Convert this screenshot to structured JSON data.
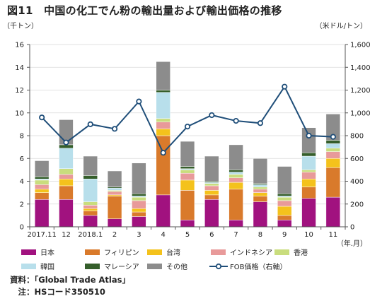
{
  "figure": {
    "title": "図11　中国の化工でん粉の輸出量および輸出価格の推移"
  },
  "notes": {
    "source": "資料：「Global Trade Atlas」",
    "note": "　注：HSコード350510"
  },
  "chart_data": {
    "type": "bar",
    "stacked": true,
    "categories": [
      "2017.11",
      "12",
      "2018.1",
      "2",
      "3",
      "4",
      "5",
      "6",
      "7",
      "8",
      "9",
      "10",
      "11"
    ],
    "left_axis": {
      "unit_label": "（千トン）",
      "ylim": [
        0,
        16
      ],
      "ticks": [
        0,
        2,
        4,
        6,
        8,
        10,
        12,
        14,
        16
      ]
    },
    "right_axis": {
      "unit_label": "（米ドル/トン）",
      "ylim": [
        0,
        1600
      ],
      "ticks": [
        "0",
        "200",
        "400",
        "600",
        "800",
        "1,000",
        "1,200",
        "1,400",
        "1,600"
      ]
    },
    "x_unit_label": "（年.月）",
    "grid": true,
    "legend_position": "bottom",
    "series": [
      {
        "name": "日本",
        "color": "#a1127f",
        "values": [
          2.4,
          2.4,
          1.0,
          0.7,
          0.9,
          2.8,
          0.6,
          2.4,
          0.6,
          2.2,
          0.6,
          2.5,
          2.6
        ]
      },
      {
        "name": "フィリピン",
        "color": "#d97a2b",
        "values": [
          0.6,
          1.2,
          0.4,
          2.0,
          0.4,
          5.2,
          2.6,
          0.4,
          2.7,
          0.5,
          0.4,
          1.0,
          2.6
        ]
      },
      {
        "name": "台湾",
        "color": "#f4c21c",
        "values": [
          0.3,
          0.6,
          0.2,
          0.1,
          0.3,
          0.6,
          0.9,
          0.4,
          0.6,
          0.3,
          0.8,
          0.7,
          0.8
        ]
      },
      {
        "name": "インドネシア",
        "color": "#e89a9a",
        "values": [
          0.4,
          0.4,
          0.3,
          0.3,
          0.7,
          0.6,
          0.6,
          0.4,
          0.4,
          0.3,
          0.5,
          0.6,
          0.6
        ]
      },
      {
        "name": "香港",
        "color": "#c9dd7d",
        "values": [
          0.4,
          0.5,
          0.3,
          0.1,
          0.3,
          0.3,
          0.3,
          0.2,
          0.3,
          0.2,
          0.3,
          0.2,
          0.3
        ]
      },
      {
        "name": "韓国",
        "color": "#b8dfeb",
        "values": [
          0.1,
          1.8,
          2.0,
          0.2,
          0.1,
          2.3,
          0.1,
          0.1,
          0.2,
          0.2,
          0.1,
          1.2,
          0.4
        ]
      },
      {
        "name": "マレーシア",
        "color": "#355e2b",
        "values": [
          0.2,
          0.3,
          0.3,
          0.1,
          0.2,
          0.2,
          0.2,
          0.1,
          0.2,
          0.1,
          0.2,
          0.3,
          0.3
        ]
      },
      {
        "name": "その他",
        "color": "#8c8c8c",
        "values": [
          1.4,
          2.2,
          1.7,
          1.4,
          2.7,
          2.5,
          2.2,
          2.2,
          2.2,
          2.2,
          2.4,
          2.2,
          2.3
        ]
      }
    ],
    "line_series": {
      "name": "FOB価格（右軸）",
      "color": "#1f4e79",
      "axis": "right",
      "values": [
        960,
        740,
        900,
        860,
        1100,
        650,
        880,
        980,
        930,
        910,
        1230,
        800,
        790
      ]
    }
  }
}
